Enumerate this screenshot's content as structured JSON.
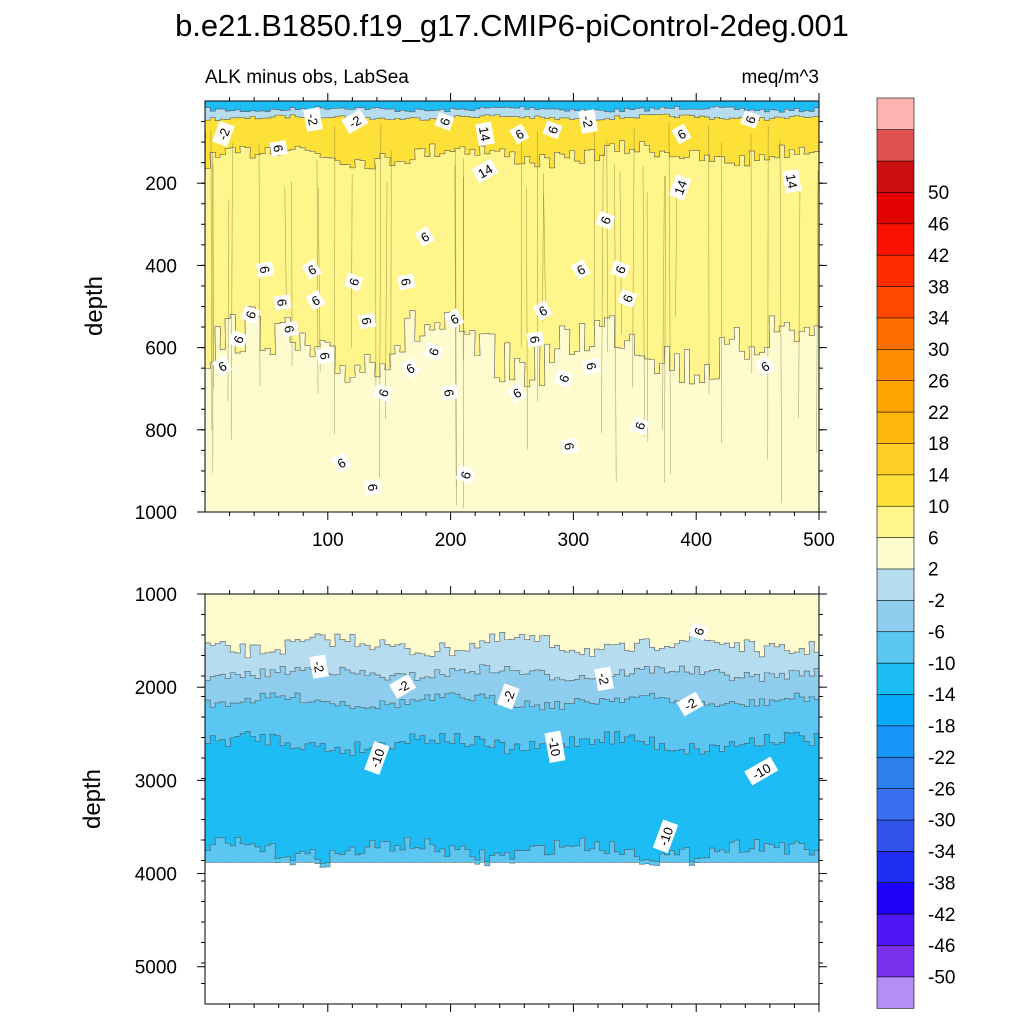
{
  "chart_data": {
    "type": "heatmap",
    "title": "b.e21.B1850.f19_g17.CMIP6-piControl-2deg.001",
    "subtitle_left": "ALK minus obs, LabSea",
    "subtitle_right": "meq/m^3",
    "xlabel": "",
    "xlim": [
      0,
      500
    ],
    "x_ticks": [
      100,
      200,
      300,
      400,
      500
    ],
    "panels": [
      {
        "name": "upper",
        "ylabel": "depth",
        "ylim": [
          1000,
          0
        ],
        "y_ticks": [
          200,
          400,
          600,
          800,
          1000
        ],
        "bands": [
          {
            "depth_top": 0,
            "depth_bottom": 20,
            "value": -14
          },
          {
            "depth_top": 20,
            "depth_bottom": 40,
            "value": -2
          },
          {
            "depth_top": 40,
            "depth_bottom": 130,
            "value": 10
          },
          {
            "depth_top": 130,
            "depth_bottom": 600,
            "value": 8
          },
          {
            "depth_top": 600,
            "depth_bottom": 1000,
            "value": 5
          }
        ],
        "contour_labels": [
          {
            "text": "-2",
            "x": 15,
            "depth": 80
          },
          {
            "text": "-2",
            "x": 88,
            "depth": 45
          },
          {
            "text": "-2",
            "x": 122,
            "depth": 50
          },
          {
            "text": "6",
            "x": 195,
            "depth": 50
          },
          {
            "text": "14",
            "x": 228,
            "depth": 80
          },
          {
            "text": "6",
            "x": 256,
            "depth": 80
          },
          {
            "text": "6",
            "x": 283,
            "depth": 70
          },
          {
            "text": "-2",
            "x": 312,
            "depth": 50
          },
          {
            "text": "6",
            "x": 388,
            "depth": 80
          },
          {
            "text": "6",
            "x": 444,
            "depth": 45
          },
          {
            "text": "6",
            "x": 60,
            "depth": 115
          },
          {
            "text": "14",
            "x": 228,
            "depth": 170
          },
          {
            "text": "14",
            "x": 387,
            "depth": 210
          },
          {
            "text": "14",
            "x": 478,
            "depth": 195
          },
          {
            "text": "6",
            "x": 179,
            "depth": 330
          },
          {
            "text": "6",
            "x": 326,
            "depth": 290
          },
          {
            "text": "6",
            "x": 49,
            "depth": 410
          },
          {
            "text": "6",
            "x": 87,
            "depth": 410
          },
          {
            "text": "6",
            "x": 121,
            "depth": 440
          },
          {
            "text": "6",
            "x": 164,
            "depth": 440
          },
          {
            "text": "6",
            "x": 306,
            "depth": 410
          },
          {
            "text": "6",
            "x": 338,
            "depth": 410
          },
          {
            "text": "6",
            "x": 63,
            "depth": 490
          },
          {
            "text": "6",
            "x": 90,
            "depth": 485
          },
          {
            "text": "6",
            "x": 37,
            "depth": 520
          },
          {
            "text": "6",
            "x": 132,
            "depth": 535
          },
          {
            "text": "6",
            "x": 275,
            "depth": 510
          },
          {
            "text": "6",
            "x": 344,
            "depth": 480
          },
          {
            "text": "6",
            "x": 69,
            "depth": 555
          },
          {
            "text": "6",
            "x": 203,
            "depth": 530
          },
          {
            "text": "6",
            "x": 27,
            "depth": 580
          },
          {
            "text": "6",
            "x": 98,
            "depth": 620
          },
          {
            "text": "6",
            "x": 167,
            "depth": 650
          },
          {
            "text": "6",
            "x": 186,
            "depth": 610
          },
          {
            "text": "6",
            "x": 269,
            "depth": 580
          },
          {
            "text": "6",
            "x": 14,
            "depth": 645
          },
          {
            "text": "6",
            "x": 145,
            "depth": 710
          },
          {
            "text": "6",
            "x": 199,
            "depth": 710
          },
          {
            "text": "6",
            "x": 254,
            "depth": 710
          },
          {
            "text": "6",
            "x": 292,
            "depth": 675
          },
          {
            "text": "6",
            "x": 315,
            "depth": 645
          },
          {
            "text": "6",
            "x": 456,
            "depth": 645
          },
          {
            "text": "6",
            "x": 354,
            "depth": 790
          },
          {
            "text": "6",
            "x": 297,
            "depth": 840
          },
          {
            "text": "6",
            "x": 111,
            "depth": 880
          },
          {
            "text": "6",
            "x": 212,
            "depth": 910
          },
          {
            "text": "6",
            "x": 137,
            "depth": 940
          }
        ]
      },
      {
        "name": "lower",
        "ylabel": "depth",
        "ylim": [
          5400,
          1000
        ],
        "y_ticks": [
          1000,
          2000,
          3000,
          4000,
          5000
        ],
        "data_bottom_depth": 3880,
        "bands": [
          {
            "depth_top": 1000,
            "depth_bottom": 1550,
            "value": 5
          },
          {
            "depth_top": 1550,
            "depth_bottom": 1850,
            "value": 1
          },
          {
            "depth_top": 1850,
            "depth_bottom": 2150,
            "value": -4
          },
          {
            "depth_top": 2150,
            "depth_bottom": 2600,
            "value": -8
          },
          {
            "depth_top": 2600,
            "depth_bottom": 3750,
            "value": -12
          },
          {
            "depth_top": 3750,
            "depth_bottom": 3880,
            "value": -8
          }
        ],
        "contour_labels": [
          {
            "text": "6",
            "x": 402,
            "depth": 1400
          },
          {
            "text": "-2",
            "x": 93,
            "depth": 1780
          },
          {
            "text": "-2",
            "x": 161,
            "depth": 1990
          },
          {
            "text": "-2",
            "x": 247,
            "depth": 2100
          },
          {
            "text": "-2",
            "x": 325,
            "depth": 1910
          },
          {
            "text": "-2",
            "x": 395,
            "depth": 2180
          },
          {
            "text": "-10",
            "x": 140,
            "depth": 2760
          },
          {
            "text": "-10",
            "x": 285,
            "depth": 2640
          },
          {
            "text": "-10",
            "x": 453,
            "depth": 2900
          },
          {
            "text": "-10",
            "x": 375,
            "depth": 3600
          }
        ]
      }
    ],
    "colorbar": {
      "colors": [
        "#b48ef2",
        "#7b30ec",
        "#5016f5",
        "#1c00f8",
        "#1d2ef0",
        "#2e52ea",
        "#3b6ef0",
        "#2e7fee",
        "#1996fa",
        "#0aa8f8",
        "#1ebcf5",
        "#5bc6f2",
        "#8ecded",
        "#b5dcef",
        "#fefcce",
        "#fff58a",
        "#fee138",
        "#fece24",
        "#fdb70e",
        "#fea400",
        "#fd8c00",
        "#fe6e00",
        "#fe4a00",
        "#fe2c00",
        "#fa1200",
        "#e30000",
        "#cc1010",
        "#e25151",
        "#ffb2b2"
      ],
      "labels": [
        "-50",
        "-46",
        "-42",
        "-38",
        "-34",
        "-30",
        "-26",
        "-22",
        "-18",
        "-14",
        "-10",
        "-6",
        "-2",
        "2",
        "6",
        "10",
        "14",
        "18",
        "22",
        "26",
        "30",
        "34",
        "38",
        "42",
        "46",
        "50"
      ]
    }
  }
}
